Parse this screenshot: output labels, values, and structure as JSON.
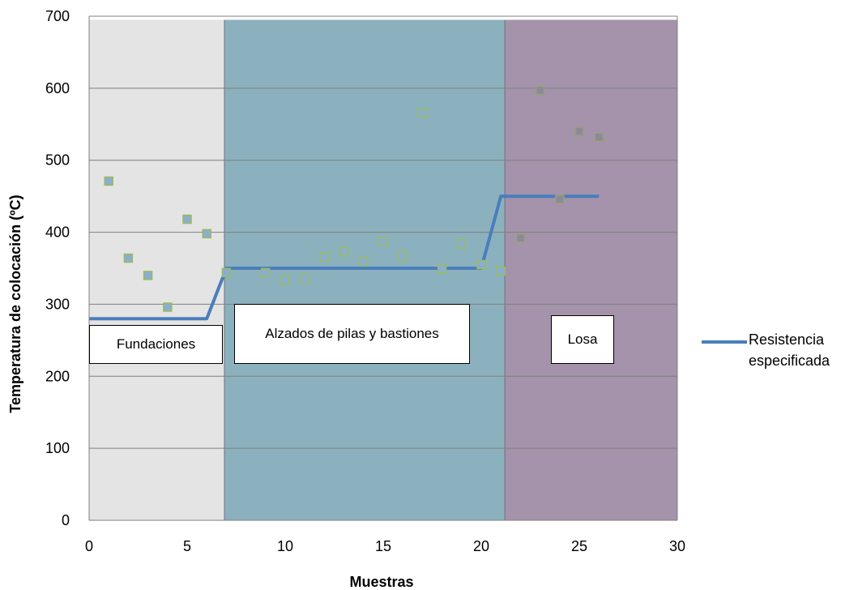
{
  "chart_data": {
    "type": "scatter",
    "title": "",
    "xlabel": "Muestras",
    "ylabel": "Temperatura de colocación (ºC)",
    "xlim": [
      0,
      30
    ],
    "ylim": [
      0,
      700
    ],
    "x_ticks": [
      "0",
      "5",
      "10",
      "15",
      "20",
      "25",
      "30"
    ],
    "y_ticks": [
      "0",
      "100",
      "200",
      "300",
      "400",
      "500",
      "600",
      "700"
    ],
    "grid": "horizontal",
    "regions": [
      {
        "label": "Fundaciones",
        "x_start": 0,
        "x_end": 6.9,
        "color": "#e4e4e4"
      },
      {
        "label": "Alzados de pilas y bastiones",
        "x_start": 6.9,
        "x_end": 21.2,
        "color": "#8cb1be"
      },
      {
        "label": "Losa",
        "x_start": 21.2,
        "x_end": 30,
        "color": "#a493ab"
      }
    ],
    "points": {
      "x": [
        1,
        2,
        3,
        4,
        5,
        6,
        7,
        9,
        10,
        11,
        12,
        13,
        14,
        15,
        16,
        17,
        18,
        19,
        20,
        21,
        22,
        23,
        24,
        25,
        26
      ],
      "y": [
        471,
        364,
        340,
        296,
        418,
        398,
        344,
        344,
        334,
        336,
        366,
        373,
        359,
        388,
        367,
        566,
        349,
        384,
        355,
        346,
        392,
        597,
        446,
        540,
        532
      ]
    },
    "series": [
      {
        "name": "Resistencia especificada",
        "type": "line",
        "color": "#4a7ebb",
        "x": [
          0,
          6,
          7,
          20,
          21,
          26
        ],
        "y": [
          280,
          280,
          350,
          350,
          450,
          450
        ]
      }
    ],
    "legend": {
      "position": "right",
      "entries": [
        "Resistencia especificada"
      ]
    }
  }
}
